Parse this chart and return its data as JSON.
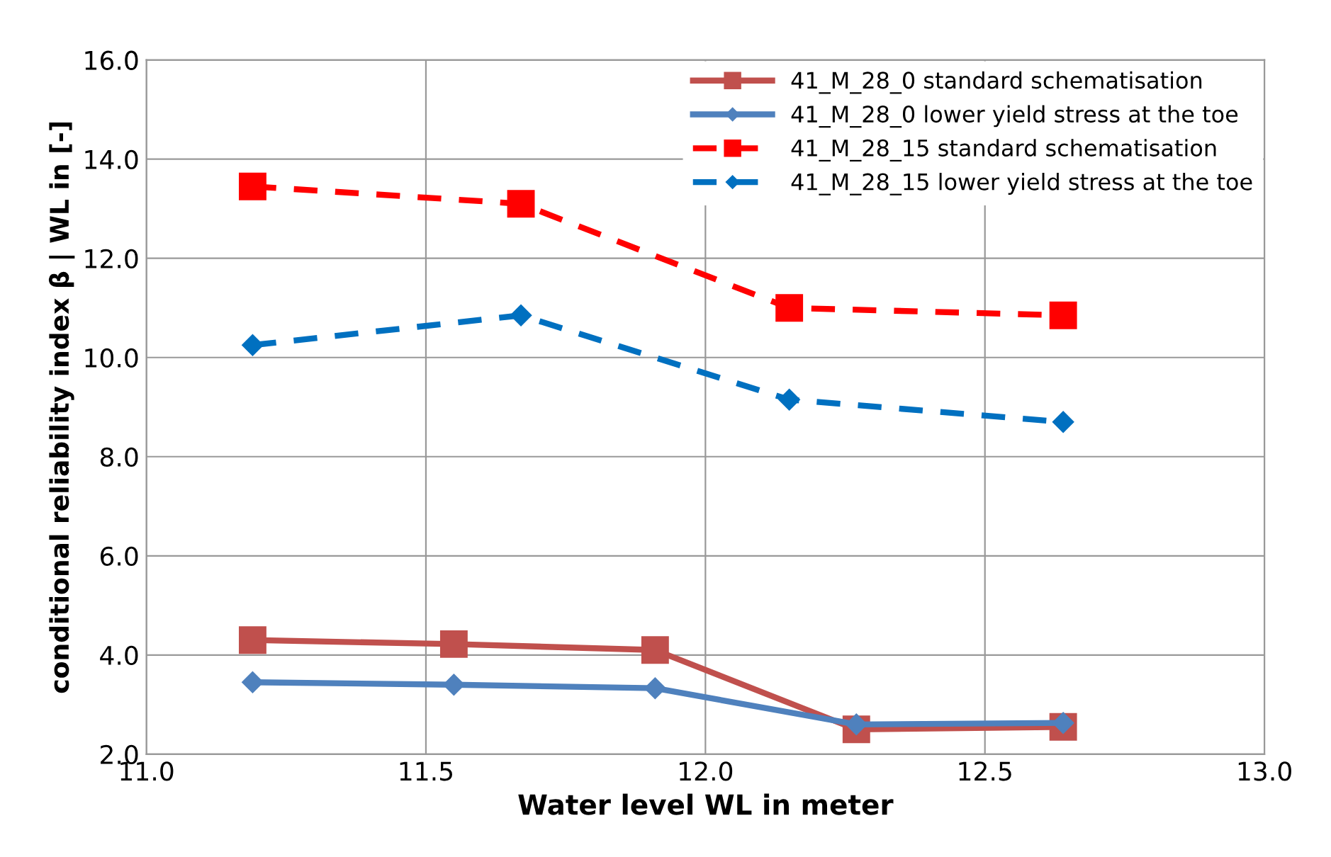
{
  "chart_data": {
    "type": "line",
    "xlabel": "Water level WL in meter",
    "ylabel": "conditional reliability index β | WL in [-]",
    "xlim": [
      11.0,
      13.0
    ],
    "xticks": [
      {
        "value": 11.0,
        "label": "11.0"
      },
      {
        "value": 11.5,
        "label": "11.5"
      },
      {
        "value": 12.0,
        "label": "12.0"
      },
      {
        "value": 12.5,
        "label": "12.5"
      },
      {
        "value": 13.0,
        "label": "13.0"
      }
    ],
    "ylim": [
      2.0,
      16.0
    ],
    "yticks": [
      {
        "value": 2.0,
        "label": "2.0"
      },
      {
        "value": 4.0,
        "label": "4.0"
      },
      {
        "value": 6.0,
        "label": "6.0"
      },
      {
        "value": 8.0,
        "label": "8.0"
      },
      {
        "value": 10.0,
        "label": "10.0"
      },
      {
        "value": 12.0,
        "label": "12.0"
      },
      {
        "value": 14.0,
        "label": "14.0"
      },
      {
        "value": 16.0,
        "label": "16.0"
      }
    ],
    "grid": true,
    "legend": "top right",
    "series": [
      {
        "name": "41_M_28_0 standard schematisation",
        "color": "#c0504d",
        "marker": "square",
        "line_style": "solid",
        "x": [
          11.19,
          11.55,
          11.91,
          12.27,
          12.64
        ],
        "values": [
          4.3,
          4.22,
          4.1,
          2.5,
          2.55
        ]
      },
      {
        "name": "41_M_28_0 lower yield stress at the toe",
        "color": "#4f81bd",
        "marker": "diamond",
        "line_style": "solid",
        "x": [
          11.19,
          11.55,
          11.91,
          12.27,
          12.64
        ],
        "values": [
          3.45,
          3.4,
          3.33,
          2.6,
          2.63
        ]
      },
      {
        "name": "41_M_28_15 standard schematisation",
        "color": "#ff0000",
        "marker": "square",
        "line_style": "dashed",
        "x": [
          11.19,
          11.67,
          12.15,
          12.64
        ],
        "values": [
          13.45,
          13.1,
          11.0,
          10.85
        ]
      },
      {
        "name": "41_M_28_15 lower yield stress at the toe",
        "color": "#0070c0",
        "marker": "diamond",
        "line_style": "dashed",
        "x": [
          11.19,
          11.67,
          12.15,
          12.64
        ],
        "values": [
          10.25,
          10.85,
          9.15,
          8.7
        ]
      }
    ]
  }
}
